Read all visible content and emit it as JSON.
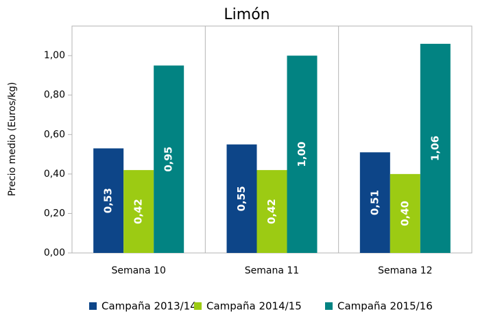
{
  "chart_data": {
    "type": "bar",
    "title": "Limón",
    "y_label": "Precio medio (Euros/kg)",
    "categories": [
      "Semana 10",
      "Semana 11",
      "Semana 12"
    ],
    "series": [
      {
        "name": "Campaña 2013/14",
        "color": "#0d4588",
        "values": [
          0.53,
          0.55,
          0.51
        ],
        "value_labels": [
          "0,53",
          "0,55",
          "0,51"
        ]
      },
      {
        "name": "Campaña 2014/15",
        "color": "#9ccb13",
        "values": [
          0.42,
          0.42,
          0.4
        ],
        "value_labels": [
          "0,42",
          "0,42",
          "0,40"
        ]
      },
      {
        "name": "Campaña 2015/16",
        "color": "#028382",
        "values": [
          0.95,
          1.0,
          1.06
        ],
        "value_labels": [
          "0,95",
          "1,00",
          "1,06"
        ]
      }
    ],
    "ylim": [
      0,
      1.15
    ],
    "yticks": [
      {
        "value": 0,
        "label": "0,00"
      },
      {
        "value": 0.2,
        "label": "0,20"
      },
      {
        "value": 0.4,
        "label": "0,40"
      },
      {
        "value": 0.6,
        "label": "0,60"
      },
      {
        "value": 0.8,
        "label": "0,80"
      },
      {
        "value": 1.0,
        "label": "1,00"
      }
    ],
    "grid": false,
    "legend": "bottom"
  }
}
